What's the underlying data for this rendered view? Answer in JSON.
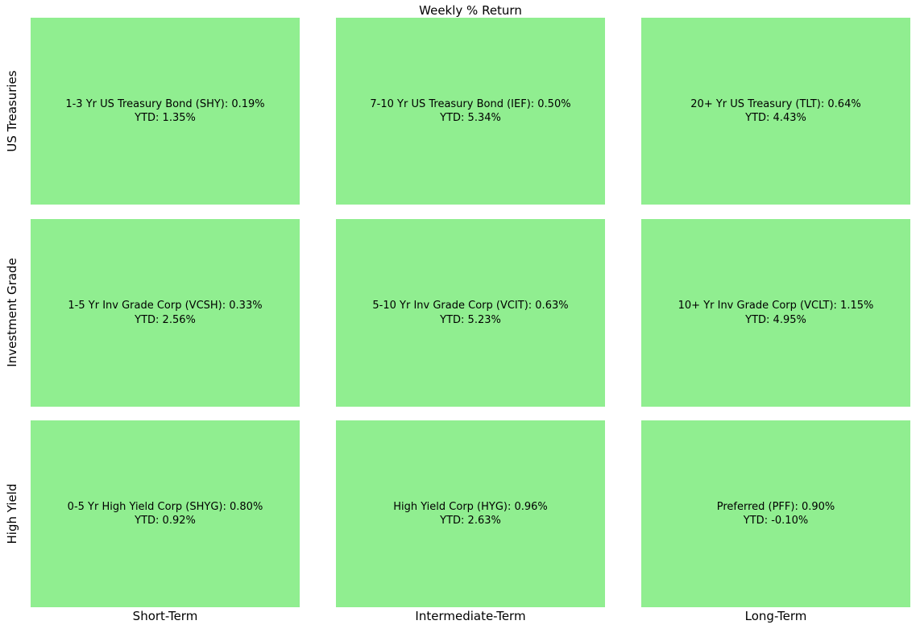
{
  "chart_data": {
    "type": "heatmap",
    "title": "Weekly % Return",
    "row_labels": [
      "US Treasuries",
      "Investment Grade",
      "High Yield"
    ],
    "col_labels": [
      "Short-Term",
      "Intermediate-Term",
      "Long-Term"
    ],
    "cell_color": "#90EE90",
    "text_color": "#000000",
    "background_color": "#ffffff",
    "legend": "none",
    "grid": "off",
    "cells": [
      [
        {
          "name": "1-3 Yr US Treasury Bond",
          "ticker": "SHY",
          "weekly_pct": 0.19,
          "ytd_pct": 1.35,
          "label": "1-3 Yr US Treasury Bond (SHY): 0.19%",
          "ytd_label": "YTD: 1.35%"
        },
        {
          "name": "7-10 Yr US Treasury Bond",
          "ticker": "IEF",
          "weekly_pct": 0.5,
          "ytd_pct": 5.34,
          "label": "7-10 Yr US Treasury Bond (IEF): 0.50%",
          "ytd_label": "YTD: 5.34%"
        },
        {
          "name": "20+ Yr US Treasury",
          "ticker": "TLT",
          "weekly_pct": 0.64,
          "ytd_pct": 4.43,
          "label": "20+ Yr US Treasury (TLT): 0.64%",
          "ytd_label": "YTD: 4.43%"
        }
      ],
      [
        {
          "name": "1-5 Yr Inv Grade Corp",
          "ticker": "VCSH",
          "weekly_pct": 0.33,
          "ytd_pct": 2.56,
          "label": "1-5 Yr Inv Grade Corp (VCSH): 0.33%",
          "ytd_label": "YTD: 2.56%"
        },
        {
          "name": "5-10 Yr Inv Grade Corp",
          "ticker": "VCIT",
          "weekly_pct": 0.63,
          "ytd_pct": 5.23,
          "label": "5-10 Yr Inv Grade Corp (VCIT): 0.63%",
          "ytd_label": "YTD: 5.23%"
        },
        {
          "name": "10+ Yr Inv Grade Corp",
          "ticker": "VCLT",
          "weekly_pct": 1.15,
          "ytd_pct": 4.95,
          "label": "10+ Yr Inv Grade Corp (VCLT): 1.15%",
          "ytd_label": "YTD: 4.95%"
        }
      ],
      [
        {
          "name": "0-5 Yr High Yield Corp",
          "ticker": "SHYG",
          "weekly_pct": 0.8,
          "ytd_pct": 0.92,
          "label": "0-5 Yr High Yield Corp (SHYG): 0.80%",
          "ytd_label": "YTD: 0.92%"
        },
        {
          "name": "High Yield Corp",
          "ticker": "HYG",
          "weekly_pct": 0.96,
          "ytd_pct": 2.63,
          "label": "High Yield Corp (HYG): 0.96%",
          "ytd_label": "YTD: 2.63%"
        },
        {
          "name": "Preferred",
          "ticker": "PFF",
          "weekly_pct": 0.9,
          "ytd_pct": -0.1,
          "label": "Preferred (PFF): 0.90%",
          "ytd_label": "YTD: -0.10%"
        }
      ]
    ]
  }
}
